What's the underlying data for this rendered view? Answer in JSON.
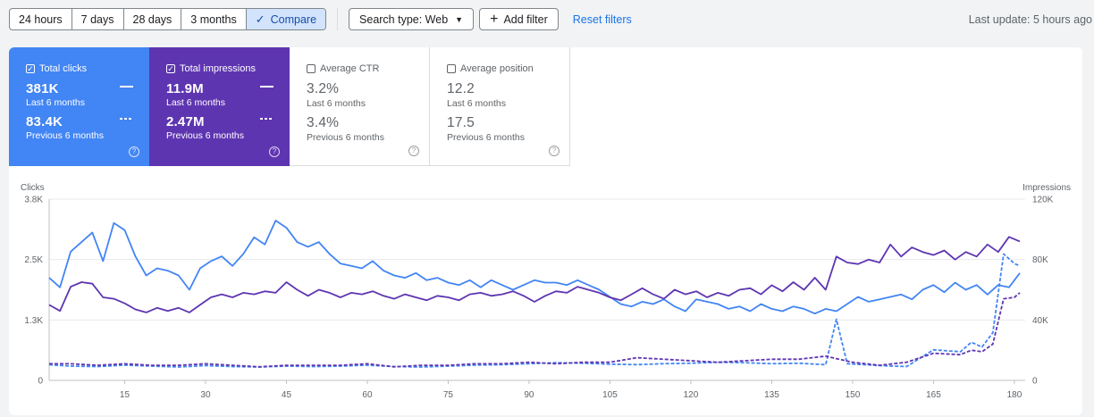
{
  "toolbar": {
    "ranges": [
      "24 hours",
      "7 days",
      "28 days",
      "3 months"
    ],
    "compare_label": "Compare",
    "search_type_label": "Search type: Web",
    "add_filter_label": "Add filter",
    "reset_filters_label": "Reset filters"
  },
  "last_update": "Last update: 5 hours ago",
  "metrics": {
    "clicks": {
      "label": "Total clicks",
      "checked": true,
      "current": "381K",
      "current_period": "Last 6 months",
      "previous": "83.4K",
      "previous_period": "Previous 6 months",
      "color": "#4285f4"
    },
    "impressions": {
      "label": "Total impressions",
      "checked": true,
      "current": "11.9M",
      "current_period": "Last 6 months",
      "previous": "2.47M",
      "previous_period": "Previous 6 months",
      "color": "#5e35b1"
    },
    "ctr": {
      "label": "Average CTR",
      "checked": false,
      "current": "3.2%",
      "current_period": "Last 6 months",
      "previous": "3.4%",
      "previous_period": "Previous 6 months"
    },
    "position": {
      "label": "Average position",
      "checked": false,
      "current": "12.2",
      "current_period": "Last 6 months",
      "previous": "17.5",
      "previous_period": "Previous 6 months"
    }
  },
  "chart_data": {
    "type": "line",
    "ylabel_left": "Clicks",
    "ylabel_right": "Impressions",
    "y_left_ticks": [
      "0",
      "1.3K",
      "2.5K",
      "3.8K"
    ],
    "y_left_lim": [
      0,
      3800
    ],
    "y_right_ticks": [
      "0",
      "40K",
      "80K",
      "120K"
    ],
    "y_right_lim": [
      0,
      120000
    ],
    "x_ticks": [
      15,
      30,
      45,
      60,
      75,
      90,
      105,
      120,
      135,
      150,
      165,
      180
    ],
    "x_lim": [
      1,
      182
    ],
    "grid": true,
    "series": [
      {
        "name": "Total clicks",
        "period": "Last 6 months",
        "axis": "left",
        "style": "solid",
        "color": "#4285f4",
        "points": [
          [
            1,
            2150
          ],
          [
            3,
            1950
          ],
          [
            5,
            2700
          ],
          [
            7,
            2900
          ],
          [
            9,
            3100
          ],
          [
            11,
            2500
          ],
          [
            13,
            3300
          ],
          [
            15,
            3150
          ],
          [
            17,
            2600
          ],
          [
            19,
            2200
          ],
          [
            21,
            2350
          ],
          [
            23,
            2300
          ],
          [
            25,
            2200
          ],
          [
            27,
            1900
          ],
          [
            29,
            2350
          ],
          [
            31,
            2500
          ],
          [
            33,
            2600
          ],
          [
            35,
            2400
          ],
          [
            37,
            2650
          ],
          [
            39,
            3000
          ],
          [
            41,
            2850
          ],
          [
            43,
            3350
          ],
          [
            45,
            3200
          ],
          [
            47,
            2900
          ],
          [
            49,
            2800
          ],
          [
            51,
            2900
          ],
          [
            53,
            2650
          ],
          [
            55,
            2450
          ],
          [
            57,
            2400
          ],
          [
            59,
            2350
          ],
          [
            61,
            2500
          ],
          [
            63,
            2300
          ],
          [
            65,
            2200
          ],
          [
            67,
            2150
          ],
          [
            69,
            2250
          ],
          [
            71,
            2100
          ],
          [
            73,
            2150
          ],
          [
            75,
            2050
          ],
          [
            77,
            2000
          ],
          [
            79,
            2100
          ],
          [
            81,
            1950
          ],
          [
            83,
            2100
          ],
          [
            85,
            2000
          ],
          [
            87,
            1900
          ],
          [
            89,
            2000
          ],
          [
            91,
            2100
          ],
          [
            93,
            2050
          ],
          [
            95,
            2050
          ],
          [
            97,
            2000
          ],
          [
            99,
            2100
          ],
          [
            101,
            2000
          ],
          [
            103,
            1900
          ],
          [
            105,
            1750
          ],
          [
            107,
            1600
          ],
          [
            109,
            1550
          ],
          [
            111,
            1650
          ],
          [
            113,
            1600
          ],
          [
            115,
            1700
          ],
          [
            117,
            1550
          ],
          [
            119,
            1450
          ],
          [
            121,
            1700
          ],
          [
            123,
            1650
          ],
          [
            125,
            1600
          ],
          [
            127,
            1500
          ],
          [
            129,
            1550
          ],
          [
            131,
            1450
          ],
          [
            133,
            1600
          ],
          [
            135,
            1500
          ],
          [
            137,
            1450
          ],
          [
            139,
            1550
          ],
          [
            141,
            1500
          ],
          [
            143,
            1400
          ],
          [
            145,
            1500
          ],
          [
            147,
            1450
          ],
          [
            149,
            1600
          ],
          [
            151,
            1750
          ],
          [
            153,
            1650
          ],
          [
            155,
            1700
          ],
          [
            157,
            1750
          ],
          [
            159,
            1800
          ],
          [
            161,
            1700
          ],
          [
            163,
            1900
          ],
          [
            165,
            2000
          ],
          [
            167,
            1850
          ],
          [
            169,
            2050
          ],
          [
            171,
            1900
          ],
          [
            173,
            2000
          ],
          [
            175,
            1800
          ],
          [
            177,
            2000
          ],
          [
            179,
            1950
          ],
          [
            181,
            2250
          ]
        ]
      },
      {
        "name": "Total impressions",
        "period": "Last 6 months",
        "axis": "right",
        "style": "solid",
        "color": "#5e35b1",
        "points": [
          [
            1,
            50000
          ],
          [
            3,
            46000
          ],
          [
            5,
            62000
          ],
          [
            7,
            65000
          ],
          [
            9,
            64000
          ],
          [
            11,
            55000
          ],
          [
            13,
            54000
          ],
          [
            15,
            51000
          ],
          [
            17,
            47000
          ],
          [
            19,
            45000
          ],
          [
            21,
            48000
          ],
          [
            23,
            46000
          ],
          [
            25,
            48000
          ],
          [
            27,
            45000
          ],
          [
            29,
            50000
          ],
          [
            31,
            55000
          ],
          [
            33,
            57000
          ],
          [
            35,
            55000
          ],
          [
            37,
            58000
          ],
          [
            39,
            57000
          ],
          [
            41,
            59000
          ],
          [
            43,
            58000
          ],
          [
            45,
            65000
          ],
          [
            47,
            60000
          ],
          [
            49,
            56000
          ],
          [
            51,
            60000
          ],
          [
            53,
            58000
          ],
          [
            55,
            55000
          ],
          [
            57,
            58000
          ],
          [
            59,
            57000
          ],
          [
            61,
            59000
          ],
          [
            63,
            56000
          ],
          [
            65,
            54000
          ],
          [
            67,
            57000
          ],
          [
            69,
            55000
          ],
          [
            71,
            53000
          ],
          [
            73,
            56000
          ],
          [
            75,
            55000
          ],
          [
            77,
            53000
          ],
          [
            79,
            57000
          ],
          [
            81,
            58000
          ],
          [
            83,
            56000
          ],
          [
            85,
            57000
          ],
          [
            87,
            59000
          ],
          [
            89,
            56000
          ],
          [
            91,
            52000
          ],
          [
            93,
            56000
          ],
          [
            95,
            59000
          ],
          [
            97,
            58000
          ],
          [
            99,
            62000
          ],
          [
            101,
            60000
          ],
          [
            103,
            58000
          ],
          [
            105,
            55000
          ],
          [
            107,
            53000
          ],
          [
            109,
            57000
          ],
          [
            111,
            61000
          ],
          [
            113,
            57000
          ],
          [
            115,
            54000
          ],
          [
            117,
            60000
          ],
          [
            119,
            57000
          ],
          [
            121,
            59000
          ],
          [
            123,
            55000
          ],
          [
            125,
            58000
          ],
          [
            127,
            56000
          ],
          [
            129,
            60000
          ],
          [
            131,
            61000
          ],
          [
            133,
            57000
          ],
          [
            135,
            63000
          ],
          [
            137,
            59000
          ],
          [
            139,
            65000
          ],
          [
            141,
            60000
          ],
          [
            143,
            68000
          ],
          [
            145,
            60000
          ],
          [
            147,
            82000
          ],
          [
            149,
            78000
          ],
          [
            151,
            77000
          ],
          [
            153,
            80000
          ],
          [
            155,
            78000
          ],
          [
            157,
            90000
          ],
          [
            159,
            82000
          ],
          [
            161,
            88000
          ],
          [
            163,
            85000
          ],
          [
            165,
            83000
          ],
          [
            167,
            86000
          ],
          [
            169,
            80000
          ],
          [
            171,
            85000
          ],
          [
            173,
            82000
          ],
          [
            175,
            90000
          ],
          [
            177,
            85000
          ],
          [
            179,
            95000
          ],
          [
            181,
            92000
          ]
        ]
      },
      {
        "name": "Total clicks",
        "period": "Previous 6 months",
        "axis": "left",
        "style": "dashed",
        "color": "#4285f4",
        "points": [
          [
            1,
            330
          ],
          [
            5,
            300
          ],
          [
            10,
            290
          ],
          [
            15,
            320
          ],
          [
            20,
            300
          ],
          [
            25,
            280
          ],
          [
            30,
            310
          ],
          [
            35,
            290
          ],
          [
            40,
            280
          ],
          [
            45,
            300
          ],
          [
            50,
            290
          ],
          [
            55,
            300
          ],
          [
            60,
            320
          ],
          [
            65,
            290
          ],
          [
            70,
            280
          ],
          [
            75,
            300
          ],
          [
            80,
            320
          ],
          [
            85,
            330
          ],
          [
            90,
            350
          ],
          [
            95,
            370
          ],
          [
            100,
            360
          ],
          [
            105,
            340
          ],
          [
            110,
            330
          ],
          [
            115,
            350
          ],
          [
            120,
            360
          ],
          [
            125,
            380
          ],
          [
            130,
            370
          ],
          [
            135,
            350
          ],
          [
            140,
            360
          ],
          [
            145,
            330
          ],
          [
            147,
            1280
          ],
          [
            149,
            350
          ],
          [
            155,
            310
          ],
          [
            160,
            290
          ],
          [
            165,
            640
          ],
          [
            170,
            600
          ],
          [
            172,
            800
          ],
          [
            174,
            700
          ],
          [
            176,
            1000
          ],
          [
            178,
            2650
          ],
          [
            180,
            2450
          ],
          [
            181,
            2400
          ]
        ]
      },
      {
        "name": "Total impressions",
        "period": "Previous 6 months",
        "axis": "right",
        "style": "dashed",
        "color": "#5e35b1",
        "points": [
          [
            1,
            11000
          ],
          [
            5,
            11000
          ],
          [
            10,
            10000
          ],
          [
            15,
            11000
          ],
          [
            20,
            10000
          ],
          [
            25,
            10000
          ],
          [
            30,
            11000
          ],
          [
            35,
            10000
          ],
          [
            40,
            9000
          ],
          [
            45,
            10000
          ],
          [
            50,
            10000
          ],
          [
            55,
            10000
          ],
          [
            60,
            11000
          ],
          [
            65,
            9000
          ],
          [
            70,
            10000
          ],
          [
            75,
            10000
          ],
          [
            80,
            11000
          ],
          [
            85,
            11000
          ],
          [
            90,
            12000
          ],
          [
            95,
            11000
          ],
          [
            100,
            12000
          ],
          [
            105,
            12000
          ],
          [
            110,
            15000
          ],
          [
            115,
            14000
          ],
          [
            120,
            13000
          ],
          [
            125,
            12000
          ],
          [
            130,
            13000
          ],
          [
            135,
            14000
          ],
          [
            140,
            14000
          ],
          [
            145,
            16000
          ],
          [
            150,
            12000
          ],
          [
            155,
            10000
          ],
          [
            160,
            12000
          ],
          [
            165,
            18000
          ],
          [
            170,
            17000
          ],
          [
            172,
            20000
          ],
          [
            174,
            19000
          ],
          [
            176,
            24000
          ],
          [
            178,
            54000
          ],
          [
            180,
            55000
          ],
          [
            181,
            58000
          ]
        ]
      }
    ]
  }
}
